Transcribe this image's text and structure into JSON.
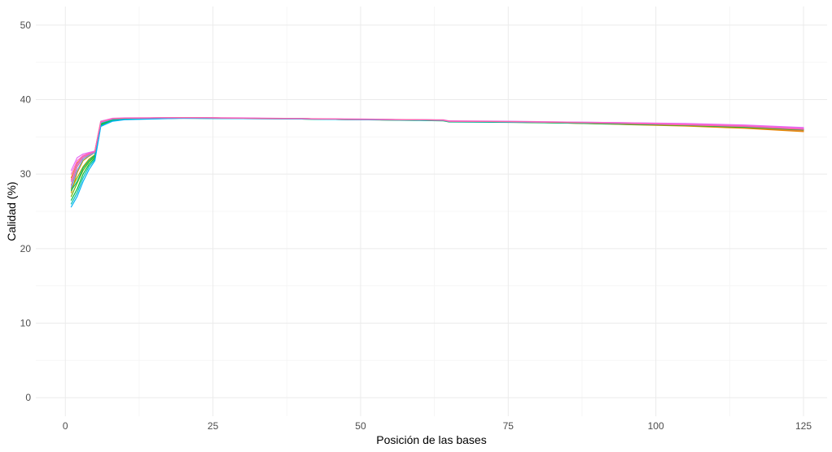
{
  "chart_data": {
    "type": "line",
    "xlabel": "Posición de las bases",
    "ylabel": "Calidad (%)",
    "xlim": [
      -5,
      129
    ],
    "ylim": [
      -2.5,
      52.5
    ],
    "x_ticks": [
      0,
      25,
      50,
      75,
      100,
      125
    ],
    "y_ticks": [
      0,
      10,
      20,
      30,
      40,
      50
    ],
    "x_tick_labels": [
      "0",
      "25",
      "50",
      "75",
      "100",
      "125"
    ],
    "y_tick_labels": [
      "0",
      "10",
      "20",
      "30",
      "40",
      "50"
    ],
    "grid": true,
    "legend": "none",
    "series": [
      {
        "color": "#F8766D",
        "points": [
          [
            1,
            28.5
          ],
          [
            2,
            31.0
          ],
          [
            3,
            32.2
          ],
          [
            4,
            32.6
          ],
          [
            5,
            33.0
          ],
          [
            6,
            37.0
          ],
          [
            8,
            37.4
          ],
          [
            10,
            37.5
          ],
          [
            20,
            37.6
          ],
          [
            30,
            37.5
          ],
          [
            40,
            37.45
          ],
          [
            50,
            37.35
          ],
          [
            60,
            37.3
          ],
          [
            64,
            37.25
          ],
          [
            65,
            37.1
          ],
          [
            75,
            37.05
          ],
          [
            85,
            36.9
          ],
          [
            95,
            36.7
          ],
          [
            105,
            36.5
          ],
          [
            115,
            36.2
          ],
          [
            125,
            35.8
          ]
        ]
      },
      {
        "color": "#E58700",
        "points": [
          [
            1,
            29.5
          ],
          [
            2,
            31.5
          ],
          [
            3,
            32.4
          ],
          [
            4,
            32.8
          ],
          [
            5,
            33.1
          ],
          [
            6,
            37.1
          ],
          [
            8,
            37.45
          ],
          [
            10,
            37.5
          ],
          [
            20,
            37.6
          ],
          [
            30,
            37.5
          ],
          [
            40,
            37.45
          ],
          [
            50,
            37.35
          ],
          [
            60,
            37.3
          ],
          [
            64,
            37.25
          ],
          [
            65,
            37.1
          ],
          [
            75,
            37.0
          ],
          [
            85,
            36.85
          ],
          [
            95,
            36.65
          ],
          [
            105,
            36.45
          ],
          [
            115,
            36.15
          ],
          [
            125,
            35.7
          ]
        ]
      },
      {
        "color": "#C99800",
        "points": [
          [
            1,
            27.5
          ],
          [
            2,
            30.2
          ],
          [
            3,
            31.8
          ],
          [
            4,
            32.4
          ],
          [
            5,
            32.9
          ],
          [
            6,
            36.9
          ],
          [
            8,
            37.35
          ],
          [
            10,
            37.45
          ],
          [
            20,
            37.6
          ],
          [
            30,
            37.5
          ],
          [
            40,
            37.45
          ],
          [
            50,
            37.35
          ],
          [
            60,
            37.25
          ],
          [
            64,
            37.2
          ],
          [
            65,
            37.05
          ],
          [
            75,
            37.0
          ],
          [
            85,
            36.85
          ],
          [
            95,
            36.7
          ],
          [
            105,
            36.5
          ],
          [
            115,
            36.25
          ],
          [
            125,
            35.9
          ]
        ]
      },
      {
        "color": "#A3A500",
        "points": [
          [
            1,
            28.0
          ],
          [
            2,
            29.5
          ],
          [
            3,
            31.0
          ],
          [
            4,
            32.0
          ],
          [
            5,
            32.6
          ],
          [
            6,
            36.8
          ],
          [
            8,
            37.3
          ],
          [
            10,
            37.45
          ],
          [
            20,
            37.55
          ],
          [
            30,
            37.5
          ],
          [
            40,
            37.4
          ],
          [
            50,
            37.3
          ],
          [
            60,
            37.25
          ],
          [
            64,
            37.2
          ],
          [
            65,
            37.05
          ],
          [
            75,
            37.0
          ],
          [
            85,
            36.9
          ],
          [
            95,
            36.75
          ],
          [
            105,
            36.55
          ],
          [
            115,
            36.3
          ],
          [
            125,
            35.95
          ]
        ]
      },
      {
        "color": "#6BB100",
        "points": [
          [
            1,
            27.0
          ],
          [
            2,
            28.8
          ],
          [
            3,
            30.5
          ],
          [
            4,
            31.6
          ],
          [
            5,
            32.4
          ],
          [
            6,
            36.7
          ],
          [
            8,
            37.25
          ],
          [
            10,
            37.4
          ],
          [
            20,
            37.55
          ],
          [
            30,
            37.5
          ],
          [
            40,
            37.4
          ],
          [
            50,
            37.3
          ],
          [
            60,
            37.25
          ],
          [
            64,
            37.2
          ],
          [
            65,
            37.05
          ],
          [
            75,
            37.0
          ],
          [
            85,
            36.9
          ],
          [
            95,
            36.75
          ],
          [
            105,
            36.6
          ],
          [
            115,
            36.35
          ],
          [
            125,
            36.0
          ]
        ]
      },
      {
        "color": "#00BA38",
        "points": [
          [
            1,
            26.5
          ],
          [
            2,
            28.0
          ],
          [
            3,
            30.0
          ],
          [
            4,
            31.3
          ],
          [
            5,
            32.2
          ],
          [
            6,
            36.6
          ],
          [
            8,
            37.2
          ],
          [
            10,
            37.4
          ],
          [
            20,
            37.5
          ],
          [
            30,
            37.45
          ],
          [
            40,
            37.4
          ],
          [
            50,
            37.3
          ],
          [
            60,
            37.2
          ],
          [
            64,
            37.15
          ],
          [
            65,
            37.0
          ],
          [
            75,
            36.95
          ],
          [
            85,
            36.85
          ],
          [
            95,
            36.7
          ],
          [
            105,
            36.55
          ],
          [
            115,
            36.3
          ],
          [
            125,
            35.95
          ]
        ]
      },
      {
        "color": "#00BF7D",
        "points": [
          [
            1,
            27.8
          ],
          [
            2,
            29.0
          ],
          [
            3,
            30.8
          ],
          [
            4,
            31.8
          ],
          [
            5,
            32.5
          ],
          [
            6,
            36.8
          ],
          [
            8,
            37.3
          ],
          [
            10,
            37.45
          ],
          [
            20,
            37.55
          ],
          [
            30,
            37.5
          ],
          [
            40,
            37.4
          ],
          [
            50,
            37.3
          ],
          [
            60,
            37.25
          ],
          [
            64,
            37.2
          ],
          [
            65,
            37.05
          ],
          [
            75,
            37.0
          ],
          [
            85,
            36.9
          ],
          [
            95,
            36.75
          ],
          [
            105,
            36.6
          ],
          [
            115,
            36.35
          ],
          [
            125,
            36.0
          ]
        ]
      },
      {
        "color": "#00C0B8",
        "points": [
          [
            1,
            26.0
          ],
          [
            2,
            27.5
          ],
          [
            3,
            29.5
          ],
          [
            4,
            31.0
          ],
          [
            5,
            32.0
          ],
          [
            6,
            36.5
          ],
          [
            8,
            37.15
          ],
          [
            10,
            37.35
          ],
          [
            20,
            37.5
          ],
          [
            30,
            37.45
          ],
          [
            40,
            37.4
          ],
          [
            50,
            37.3
          ],
          [
            60,
            37.25
          ],
          [
            64,
            37.2
          ],
          [
            65,
            37.05
          ],
          [
            75,
            37.0
          ],
          [
            85,
            36.9
          ],
          [
            95,
            36.8
          ],
          [
            105,
            36.65
          ],
          [
            115,
            36.4
          ],
          [
            125,
            36.05
          ]
        ]
      },
      {
        "color": "#00B0F6",
        "points": [
          [
            1,
            25.6
          ],
          [
            2,
            27.0
          ],
          [
            3,
            29.0
          ],
          [
            4,
            30.6
          ],
          [
            5,
            31.8
          ],
          [
            6,
            36.4
          ],
          [
            8,
            37.1
          ],
          [
            10,
            37.3
          ],
          [
            20,
            37.5
          ],
          [
            30,
            37.45
          ],
          [
            40,
            37.4
          ],
          [
            50,
            37.3
          ],
          [
            60,
            37.25
          ],
          [
            64,
            37.2
          ],
          [
            65,
            37.05
          ],
          [
            75,
            37.0
          ],
          [
            85,
            36.95
          ],
          [
            95,
            36.85
          ],
          [
            105,
            36.7
          ],
          [
            115,
            36.45
          ],
          [
            125,
            36.1
          ]
        ]
      },
      {
        "color": "#619CFF",
        "points": [
          [
            1,
            28.2
          ],
          [
            2,
            30.5
          ],
          [
            3,
            32.0
          ],
          [
            4,
            32.5
          ],
          [
            5,
            32.9
          ],
          [
            6,
            36.9
          ],
          [
            8,
            37.4
          ],
          [
            10,
            37.5
          ],
          [
            20,
            37.55
          ],
          [
            30,
            37.5
          ],
          [
            40,
            37.45
          ],
          [
            50,
            37.35
          ],
          [
            60,
            37.3
          ],
          [
            64,
            37.25
          ],
          [
            65,
            37.1
          ],
          [
            75,
            37.05
          ],
          [
            85,
            36.95
          ],
          [
            95,
            36.85
          ],
          [
            105,
            36.7
          ],
          [
            115,
            36.5
          ],
          [
            125,
            36.15
          ]
        ]
      },
      {
        "color": "#B983FF",
        "points": [
          [
            1,
            29.0
          ],
          [
            2,
            31.2
          ],
          [
            3,
            32.3
          ],
          [
            4,
            32.7
          ],
          [
            5,
            33.0
          ],
          [
            6,
            37.0
          ],
          [
            8,
            37.45
          ],
          [
            10,
            37.5
          ],
          [
            20,
            37.6
          ],
          [
            30,
            37.5
          ],
          [
            40,
            37.45
          ],
          [
            50,
            37.35
          ],
          [
            60,
            37.3
          ],
          [
            64,
            37.25
          ],
          [
            65,
            37.1
          ],
          [
            75,
            37.05
          ],
          [
            85,
            37.0
          ],
          [
            95,
            36.9
          ],
          [
            105,
            36.75
          ],
          [
            115,
            36.55
          ],
          [
            125,
            36.2
          ]
        ]
      },
      {
        "color": "#E76BF3",
        "points": [
          [
            1,
            30.5
          ],
          [
            2,
            32.2
          ],
          [
            3,
            32.7
          ],
          [
            4,
            32.9
          ],
          [
            5,
            33.1
          ],
          [
            6,
            37.1
          ],
          [
            8,
            37.5
          ],
          [
            10,
            37.55
          ],
          [
            20,
            37.6
          ],
          [
            30,
            37.55
          ],
          [
            40,
            37.45
          ],
          [
            50,
            37.4
          ],
          [
            60,
            37.3
          ],
          [
            64,
            37.3
          ],
          [
            65,
            37.15
          ],
          [
            75,
            37.1
          ],
          [
            85,
            37.0
          ],
          [
            95,
            36.9
          ],
          [
            105,
            36.8
          ],
          [
            115,
            36.6
          ],
          [
            125,
            36.25
          ]
        ]
      },
      {
        "color": "#FD61D1",
        "points": [
          [
            1,
            30.0
          ],
          [
            2,
            31.8
          ],
          [
            3,
            32.5
          ],
          [
            4,
            32.8
          ],
          [
            5,
            33.0
          ],
          [
            6,
            37.0
          ],
          [
            8,
            37.45
          ],
          [
            10,
            37.5
          ],
          [
            20,
            37.6
          ],
          [
            30,
            37.5
          ],
          [
            40,
            37.45
          ],
          [
            50,
            37.35
          ],
          [
            60,
            37.3
          ],
          [
            64,
            37.25
          ],
          [
            65,
            37.1
          ],
          [
            75,
            37.05
          ],
          [
            85,
            36.95
          ],
          [
            95,
            36.85
          ],
          [
            105,
            36.7
          ],
          [
            115,
            36.5
          ],
          [
            125,
            36.1
          ]
        ]
      },
      {
        "color": "#FF67A4",
        "points": [
          [
            1,
            29.2
          ],
          [
            2,
            31.4
          ],
          [
            3,
            32.4
          ],
          [
            4,
            32.7
          ],
          [
            5,
            33.0
          ],
          [
            6,
            37.0
          ],
          [
            8,
            37.45
          ],
          [
            10,
            37.5
          ],
          [
            20,
            37.6
          ],
          [
            30,
            37.5
          ],
          [
            40,
            37.45
          ],
          [
            50,
            37.35
          ],
          [
            60,
            37.3
          ],
          [
            64,
            37.25
          ],
          [
            65,
            37.1
          ],
          [
            75,
            37.05
          ],
          [
            85,
            36.95
          ],
          [
            95,
            36.8
          ],
          [
            105,
            36.6
          ],
          [
            115,
            36.4
          ],
          [
            125,
            36.0
          ]
        ]
      }
    ]
  }
}
